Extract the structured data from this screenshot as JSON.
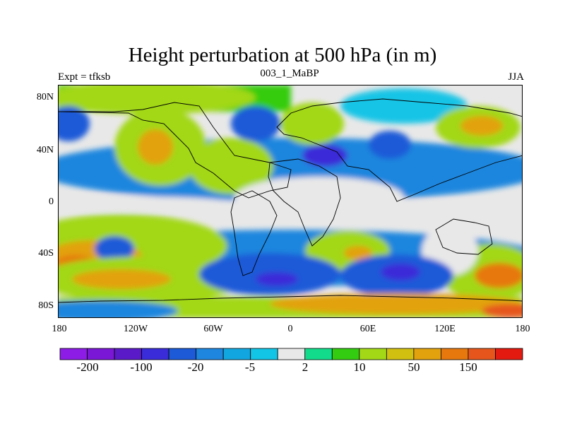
{
  "title": "Height perturbation at 500 hPa (in m)",
  "subtitle_left": "Expt = tfksb",
  "subtitle_center": "003_1_MaBP",
  "subtitle_right": "JJA",
  "lat_labels": [
    "80N",
    "40N",
    "0",
    "40S",
    "80S"
  ],
  "lon_labels": [
    "180",
    "120W",
    "60W",
    "0",
    "60E",
    "120E",
    "180"
  ],
  "colorbar": {
    "colors": [
      "#8c1ce6",
      "#7a16d6",
      "#5a1ac8",
      "#3a2cd8",
      "#1c5ad8",
      "#1e86de",
      "#12a6e0",
      "#12c4e6",
      "#e8e8e8",
      "#12dc8c",
      "#34cc10",
      "#a2d816",
      "#d2c010",
      "#e2a20e",
      "#e6780e",
      "#e6561c",
      "#e21a10"
    ],
    "labels": [
      "-200",
      "-100",
      "-20",
      "-5",
      "2",
      "10",
      "50",
      "150"
    ]
  }
}
